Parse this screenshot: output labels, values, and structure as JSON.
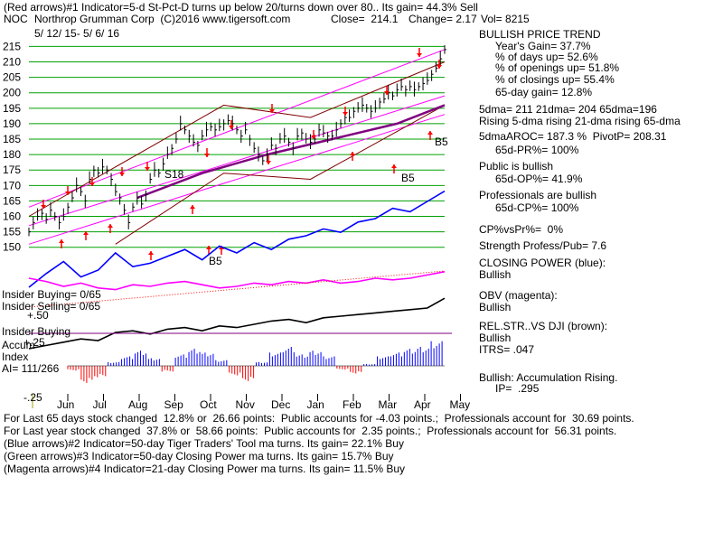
{
  "header": {
    "line1": "(Red arrows)#1 Indicator=5-d St-Pct-D turns up below 20/turns down over 80.. Its gain= 44.3% Sell",
    "ticker": "NOC",
    "company": "Northrop Grumman Corp  (C)2016 www.tigersoft.com",
    "close": "Close=  214.1",
    "change": "Change= 2.17",
    "vol": "Vol= 8215",
    "date_range": "5/ 12/ 15- 5/ 6/ 16"
  },
  "colors": {
    "price": "#000000",
    "gridline": "#00a000",
    "channel": "#ff00ff",
    "ma65": "#800080",
    "band": "#800000",
    "closing_power": "#0000ff",
    "obv": "#ff00ff",
    "relstr": "#000000",
    "accum_pos": "#0000ff",
    "accum_neg": "#ff0000",
    "sell_arrow": "#ff0000",
    "buy_arrow": "#ff0000"
  },
  "chart_data": {
    "type": "line",
    "x_ticks": [
      "Jun",
      "Jul",
      "Aug",
      "Sep",
      "Oct",
      "Nov",
      "Dec",
      "Jan",
      "Feb",
      "Mar",
      "Apr",
      "May"
    ],
    "y_ticks": [
      150,
      155,
      160,
      165,
      170,
      175,
      180,
      185,
      190,
      195,
      200,
      205,
      210,
      215
    ],
    "ylim": [
      147,
      216
    ],
    "price_points": [
      [
        0,
        155
      ],
      [
        2,
        158
      ],
      [
        4,
        160
      ],
      [
        6,
        161
      ],
      [
        8,
        159
      ],
      [
        10,
        162
      ],
      [
        12,
        160
      ],
      [
        14,
        158
      ],
      [
        16,
        160
      ],
      [
        18,
        163
      ],
      [
        20,
        166
      ],
      [
        22,
        170
      ],
      [
        24,
        168
      ],
      [
        26,
        165
      ],
      [
        28,
        172
      ],
      [
        30,
        175
      ],
      [
        32,
        174
      ],
      [
        34,
        176
      ],
      [
        36,
        175
      ],
      [
        38,
        172
      ],
      [
        40,
        168
      ],
      [
        42,
        166
      ],
      [
        44,
        162
      ],
      [
        46,
        158
      ],
      [
        48,
        163
      ],
      [
        50,
        166
      ],
      [
        52,
        164
      ],
      [
        54,
        167
      ],
      [
        56,
        172
      ],
      [
        58,
        175
      ],
      [
        60,
        174
      ],
      [
        62,
        177
      ],
      [
        64,
        180
      ],
      [
        66,
        182
      ],
      [
        68,
        185
      ],
      [
        70,
        190
      ],
      [
        72,
        188
      ],
      [
        74,
        186
      ],
      [
        76,
        184
      ],
      [
        78,
        183
      ],
      [
        80,
        186
      ],
      [
        82,
        188
      ],
      [
        84,
        189
      ],
      [
        86,
        188
      ],
      [
        88,
        189
      ],
      [
        90,
        190
      ],
      [
        92,
        191
      ],
      [
        94,
        190
      ],
      [
        96,
        188
      ],
      [
        98,
        186
      ],
      [
        100,
        188
      ],
      [
        102,
        185
      ],
      [
        104,
        182
      ],
      [
        106,
        180
      ],
      [
        108,
        178
      ],
      [
        110,
        180
      ],
      [
        112,
        183
      ],
      [
        114,
        182
      ],
      [
        116,
        185
      ],
      [
        118,
        186
      ],
      [
        120,
        184
      ],
      [
        122,
        182
      ],
      [
        124,
        186
      ],
      [
        126,
        187
      ],
      [
        128,
        185
      ],
      [
        130,
        184
      ],
      [
        132,
        185
      ],
      [
        134,
        188
      ],
      [
        136,
        187
      ],
      [
        138,
        186
      ],
      [
        140,
        186
      ],
      [
        142,
        188
      ],
      [
        144,
        190
      ],
      [
        146,
        192
      ],
      [
        148,
        192
      ],
      [
        150,
        194
      ],
      [
        152,
        195
      ],
      [
        154,
        196
      ],
      [
        156,
        195
      ],
      [
        158,
        194
      ],
      [
        160,
        195
      ],
      [
        162,
        197
      ],
      [
        164,
        198
      ],
      [
        166,
        200
      ],
      [
        168,
        199
      ],
      [
        170,
        201
      ],
      [
        172,
        202
      ],
      [
        174,
        201
      ],
      [
        176,
        202
      ],
      [
        178,
        201
      ],
      [
        180,
        202
      ],
      [
        182,
        203
      ],
      [
        184,
        204
      ],
      [
        186,
        206
      ],
      [
        188,
        208
      ],
      [
        190,
        211
      ],
      [
        192,
        214
      ]
    ],
    "ma65_points": [
      [
        50,
        166
      ],
      [
        80,
        174
      ],
      [
        110,
        180
      ],
      [
        140,
        185
      ],
      [
        170,
        190
      ],
      [
        192,
        196
      ]
    ],
    "channel_upper": [
      [
        0,
        163
      ],
      [
        192,
        214
      ]
    ],
    "channel_lower": [
      [
        0,
        151
      ],
      [
        192,
        193
      ]
    ],
    "band_upper": [
      [
        0,
        160
      ],
      [
        60,
        184
      ],
      [
        90,
        196
      ],
      [
        130,
        192
      ],
      [
        192,
        210
      ]
    ],
    "band_lower": [
      [
        40,
        151
      ],
      [
        90,
        174
      ],
      [
        130,
        172
      ],
      [
        192,
        196
      ]
    ],
    "closing_power": [
      0,
      8,
      15,
      6,
      10,
      20,
      12,
      14,
      18,
      22,
      16,
      24,
      20,
      26,
      22,
      28,
      30,
      34,
      32,
      38,
      40,
      46,
      44,
      50,
      56
    ],
    "obv": [
      30,
      26,
      20,
      24,
      18,
      16,
      22,
      20,
      24,
      26,
      22,
      18,
      20,
      24,
      22,
      26,
      24,
      28,
      24,
      26,
      30,
      28,
      30,
      34,
      38
    ],
    "rel_str": [
      10,
      14,
      18,
      22,
      20,
      30,
      32,
      28,
      34,
      36,
      32,
      38,
      36,
      40,
      44,
      46,
      42,
      48,
      50,
      52,
      54,
      56,
      58,
      60,
      72
    ],
    "accum_index": [
      -0.05,
      -0.18,
      -0.12,
      0.04,
      0.1,
      0.16,
      0.08,
      -0.06,
      0.12,
      0.18,
      0.14,
      0.06,
      -0.1,
      -0.16,
      0.04,
      0.14,
      0.2,
      0.12,
      0.16,
      0.1,
      -0.04,
      -0.08,
      0.02,
      0.1,
      0.14,
      0.18,
      0.2,
      0.26
    ],
    "accum_ticks": [
      "+.25",
      "-.25"
    ]
  },
  "labels": {
    "insider_buying": "Insider Buying= 0/65",
    "insider_selling": "Insider Selling= 0/65",
    "plus_50": "+.50",
    "insider_buying2": "Insider Buying",
    "accum1": "Accum",
    "accum2": "Index",
    "ai": "AI= 111/266",
    "s18": "S18",
    "b5a": "B5",
    "b5b": "B5",
    "b5c": "B5"
  },
  "side": {
    "title": "BULLISH PRICE TREND",
    "years_gain": "Year's Gain= 37.7%",
    "days_up": "% of days up= 52.6%",
    "openings_up": "% of openings up= 51.8%",
    "closings_up": "% of closings up= 55.4%",
    "gain65": "65-day gain= 12.8%",
    "dma": "5dma= 211 21dma= 204 65dma=196",
    "rising": "Rising 5-dma rising 21-dma rising 65-dma",
    "aroc": "5dmaAROC= 187.3 %  PivotP= 208.31",
    "pr": "65d-PR%= 100%",
    "public": "Public is bullish",
    "op": "65d-OP%= 41.9%",
    "pros": "Professionals are bullish",
    "cp": "65d-CP%= 100%",
    "cpvspr": "CP%vsPr%=  0%",
    "strength": "Strength Profess/Pub= 7.6",
    "closing_power": "CLOSING POWER (blue):",
    "cp_bull": "Bullish",
    "obv": "OBV (magenta):",
    "obv_bull": "Bullish",
    "relstr": "REL.STR..VS DJI (brown):",
    "relstr_bull": "Bullish",
    "itrs": "ITRS= .047",
    "accum": "Bullish: Accumulation Rising.",
    "ip": "IP=  .295"
  },
  "footer": {
    "l1": "For Last 65 days stock changed  12.8% or  26.66 points:  Public accounts for -4.03 points.;  Professionals account for  30.69 points.",
    "l2": "For Last year stock changed  37.8% or  58.66 points:  Public accounts for  2.35 points.;  Professionals account for  56.31 points.",
    "l3": "(Blue arrows)#2 Indicator=50-day Tiger Traders' Tool ma turns. Its gain= 22.1% Buy",
    "l4": "(Green arrows)#3 Indicator=50-day Closing Power ma turns. Its gain= 15.7% Buy",
    "l5": "(Magenta arrows)#4 Indicator=21-day Closing Power ma turns. Its gain= 11.5% Buy"
  }
}
